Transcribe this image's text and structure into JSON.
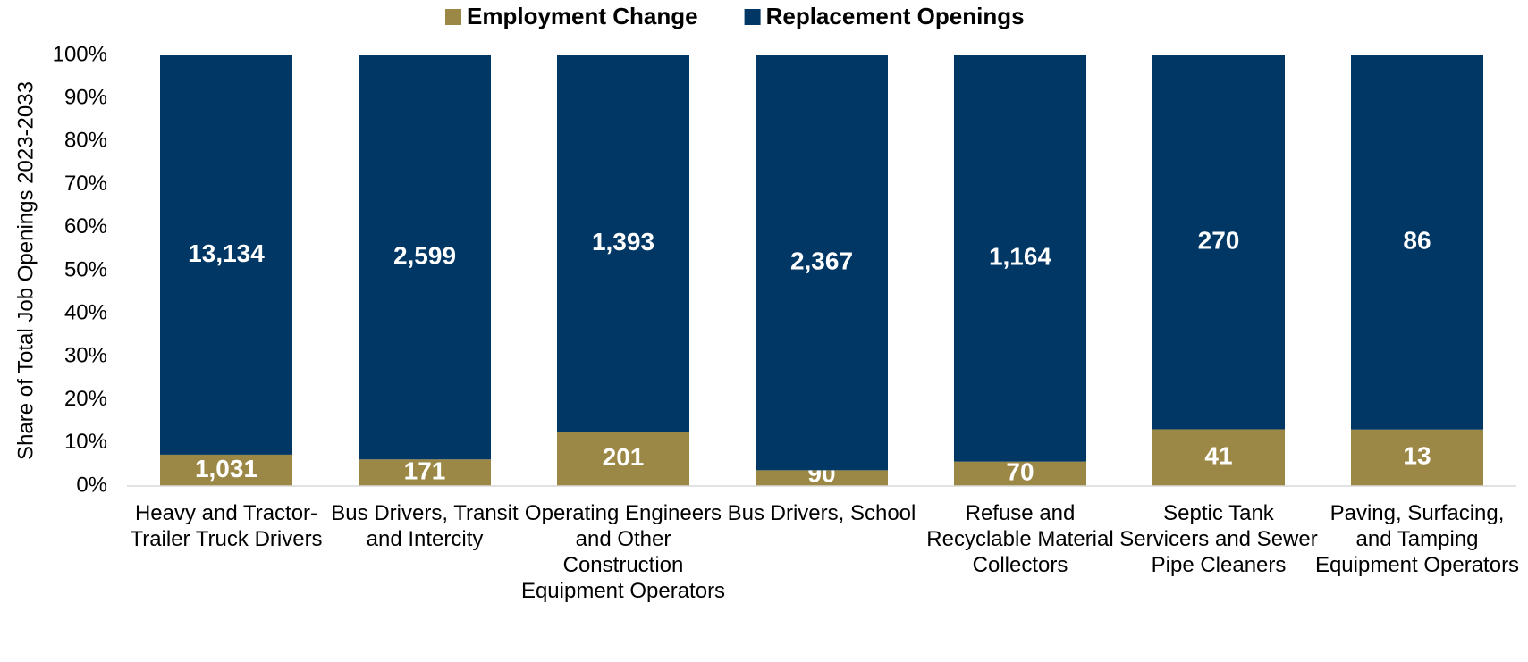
{
  "chart_data": {
    "type": "bar",
    "stacking": "percent",
    "y_label": "Share of Total Job Openings 2023-2033",
    "categories": [
      "Heavy and Tractor-Trailer Truck Drivers",
      "Bus Drivers, Transit and Intercity",
      "Operating Engineers and Other Construction Equipment Operators",
      "Bus Drivers, School",
      "Refuse and Recyclable Material Collectors",
      "Septic Tank Servicers and Sewer Pipe Cleaners",
      "Paving, Surfacing, and Tamping Equipment Operators"
    ],
    "series": [
      {
        "name": "Employment Change",
        "color": "#9c8846",
        "values": [
          1031,
          171,
          201,
          90,
          70,
          41,
          13
        ],
        "value_labels": [
          "1,031",
          "171",
          "201",
          "90",
          "70",
          "41",
          "13"
        ]
      },
      {
        "name": "Replacement Openings",
        "color": "#003764",
        "values": [
          13134,
          2599,
          1393,
          2367,
          1164,
          270,
          86
        ],
        "value_labels": [
          "13,134",
          "2,599",
          "1,393",
          "2,367",
          "1,164",
          "270",
          "86"
        ]
      }
    ],
    "ylim": [
      0,
      100
    ],
    "yticks": [
      {
        "value": 0,
        "label": "0%"
      },
      {
        "value": 10,
        "label": "10%"
      },
      {
        "value": 20,
        "label": "20%"
      },
      {
        "value": 30,
        "label": "30%"
      },
      {
        "value": 40,
        "label": "40%"
      },
      {
        "value": 50,
        "label": "50%"
      },
      {
        "value": 60,
        "label": "60%"
      },
      {
        "value": 70,
        "label": "70%"
      },
      {
        "value": 80,
        "label": "80%"
      },
      {
        "value": 90,
        "label": "90%"
      },
      {
        "value": 100,
        "label": "100%"
      }
    ],
    "legend": "top",
    "grid": false
  }
}
